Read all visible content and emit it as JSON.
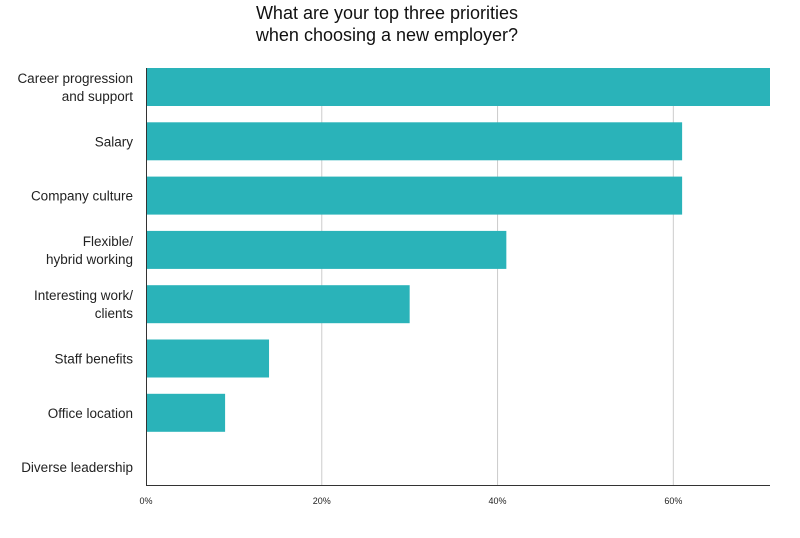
{
  "chart_data": {
    "type": "bar",
    "orientation": "horizontal",
    "title": "What are your top three priorities when choosing a new employer?",
    "title_lines": [
      "What are your top three priorities",
      "when choosing a new employer?"
    ],
    "categories": [
      [
        "Career progression",
        "and support"
      ],
      [
        "Salary"
      ],
      [
        "Company culture"
      ],
      [
        "Flexible/",
        "hybrid working"
      ],
      [
        "Interesting work/",
        "clients"
      ],
      [
        "Staff benefits"
      ],
      [
        "Office location"
      ],
      [
        "Diverse leadership"
      ]
    ],
    "values": [
      71,
      61,
      61,
      41,
      30,
      14,
      9,
      0
    ],
    "xlim": [
      0,
      71
    ],
    "xticks": [
      0,
      20,
      40,
      60
    ],
    "xtick_labels": [
      "0%",
      "20%",
      "40%",
      "60%"
    ],
    "grid": true,
    "xlabel": "",
    "ylabel": "",
    "bar_color": "#2ab3b9",
    "grid_color": "#cccccc",
    "axis_color": "#333333"
  }
}
